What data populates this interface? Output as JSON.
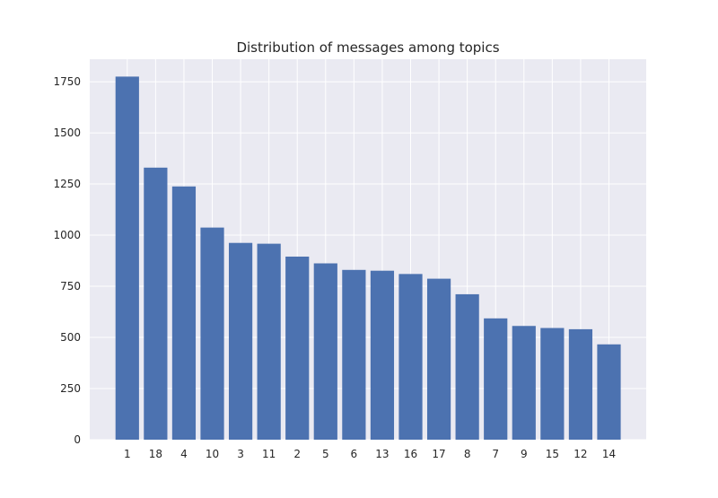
{
  "chart_data": {
    "type": "bar",
    "title": "Distribution of messages among topics",
    "xlabel": "",
    "ylabel": "",
    "categories": [
      "1",
      "18",
      "4",
      "10",
      "3",
      "11",
      "2",
      "5",
      "6",
      "13",
      "16",
      "17",
      "8",
      "7",
      "9",
      "15",
      "12",
      "14"
    ],
    "values": [
      1775,
      1330,
      1238,
      1037,
      962,
      958,
      895,
      862,
      830,
      826,
      810,
      787,
      711,
      593,
      556,
      546,
      540,
      466
    ],
    "ylim": [
      0,
      1860
    ],
    "yticks": [
      0,
      250,
      500,
      750,
      1000,
      1250,
      1500,
      1750
    ],
    "ytick_labels": [
      "0",
      "250",
      "500",
      "750",
      "1000",
      "1250",
      "1500",
      "1750"
    ],
    "grid": true,
    "colors": {
      "bar": "#4c72b0",
      "plot_background": "#eaeaf2",
      "grid": "#ffffff",
      "text": "#262626"
    }
  }
}
